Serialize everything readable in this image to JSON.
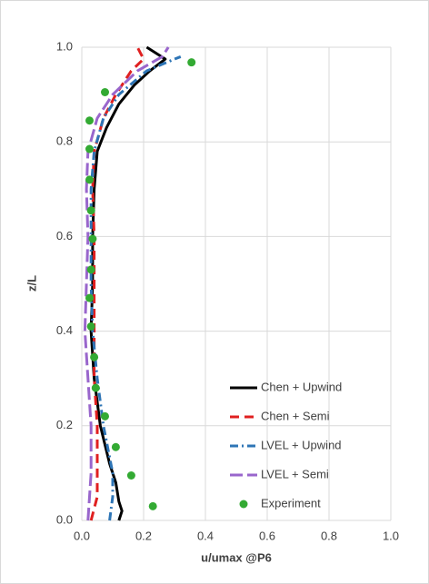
{
  "chart_data": {
    "type": "line",
    "xlabel": "u/umax @P6",
    "ylabel": "z/L",
    "xlim": [
      0,
      1
    ],
    "ylim": [
      0,
      1
    ],
    "xticks": [
      {
        "value": 0,
        "label": "0.0"
      },
      {
        "value": 0.2,
        "label": "0.2"
      },
      {
        "value": 0.4,
        "label": "0.4"
      },
      {
        "value": 0.6,
        "label": "0.6"
      },
      {
        "value": 0.8,
        "label": "0.8"
      },
      {
        "value": 1,
        "label": "1.0"
      }
    ],
    "yticks": [
      {
        "value": 0,
        "label": "0.0"
      },
      {
        "value": 0.2,
        "label": "0.2"
      },
      {
        "value": 0.4,
        "label": "0.4"
      },
      {
        "value": 0.6,
        "label": "0.6"
      },
      {
        "value": 0.8,
        "label": "0.8"
      },
      {
        "value": 1,
        "label": "1.0"
      }
    ],
    "grid": true,
    "series": [
      {
        "name": "Chen + Upwind",
        "color": "#000000",
        "style": "solid",
        "x": [
          0.12,
          0.13,
          0.12,
          0.11,
          0.09,
          0.06,
          0.04,
          0.03,
          0.035,
          0.035,
          0.04,
          0.05,
          0.08,
          0.12,
          0.17,
          0.22,
          0.27,
          0.21
        ],
        "values": [
          0,
          0.02,
          0.04,
          0.08,
          0.12,
          0.2,
          0.3,
          0.4,
          0.5,
          0.6,
          0.7,
          0.78,
          0.83,
          0.88,
          0.92,
          0.95,
          0.975,
          1
        ]
      },
      {
        "name": "Chen + Semi",
        "color": "#e02020",
        "style": "dash",
        "x": [
          0.03,
          0.05,
          0.05,
          0.05,
          0.04,
          0.04,
          0.04,
          0.04,
          0.035,
          0.04,
          0.07,
          0.11,
          0.16,
          0.2,
          0.18
        ],
        "values": [
          0,
          0.05,
          0.1,
          0.2,
          0.3,
          0.4,
          0.5,
          0.6,
          0.7,
          0.78,
          0.85,
          0.9,
          0.95,
          0.975,
          1
        ]
      },
      {
        "name": "LVEL + Upwind",
        "color": "#2e75b6",
        "style": "dashdot",
        "x": [
          0.09,
          0.1,
          0.1,
          0.07,
          0.05,
          0.035,
          0.03,
          0.03,
          0.03,
          0.04,
          0.07,
          0.12,
          0.21,
          0.3,
          0.32
        ],
        "values": [
          0,
          0.05,
          0.1,
          0.2,
          0.3,
          0.4,
          0.5,
          0.6,
          0.7,
          0.78,
          0.85,
          0.9,
          0.95,
          0.975,
          0.98
        ]
      },
      {
        "name": "LVEL + Semi",
        "color": "#9966cc",
        "style": "longdash",
        "x": [
          0.02,
          0.03,
          0.03,
          0.02,
          0.01,
          0.015,
          0.02,
          0.015,
          0.02,
          0.05,
          0.1,
          0.18,
          0.26,
          0.28
        ],
        "values": [
          0,
          0.1,
          0.2,
          0.3,
          0.4,
          0.5,
          0.6,
          0.7,
          0.78,
          0.85,
          0.9,
          0.95,
          0.98,
          1
        ]
      },
      {
        "name": "Experiment",
        "color": "#33aa33",
        "style": "markers",
        "x": [
          0.23,
          0.16,
          0.11,
          0.075,
          0.045,
          0.04,
          0.03,
          0.025,
          0.03,
          0.035,
          0.03,
          0.025,
          0.025,
          0.025,
          0.075,
          0.355
        ],
        "values": [
          0.03,
          0.095,
          0.155,
          0.22,
          0.28,
          0.345,
          0.41,
          0.47,
          0.53,
          0.595,
          0.655,
          0.72,
          0.785,
          0.845,
          0.905,
          0.968
        ]
      }
    ]
  }
}
